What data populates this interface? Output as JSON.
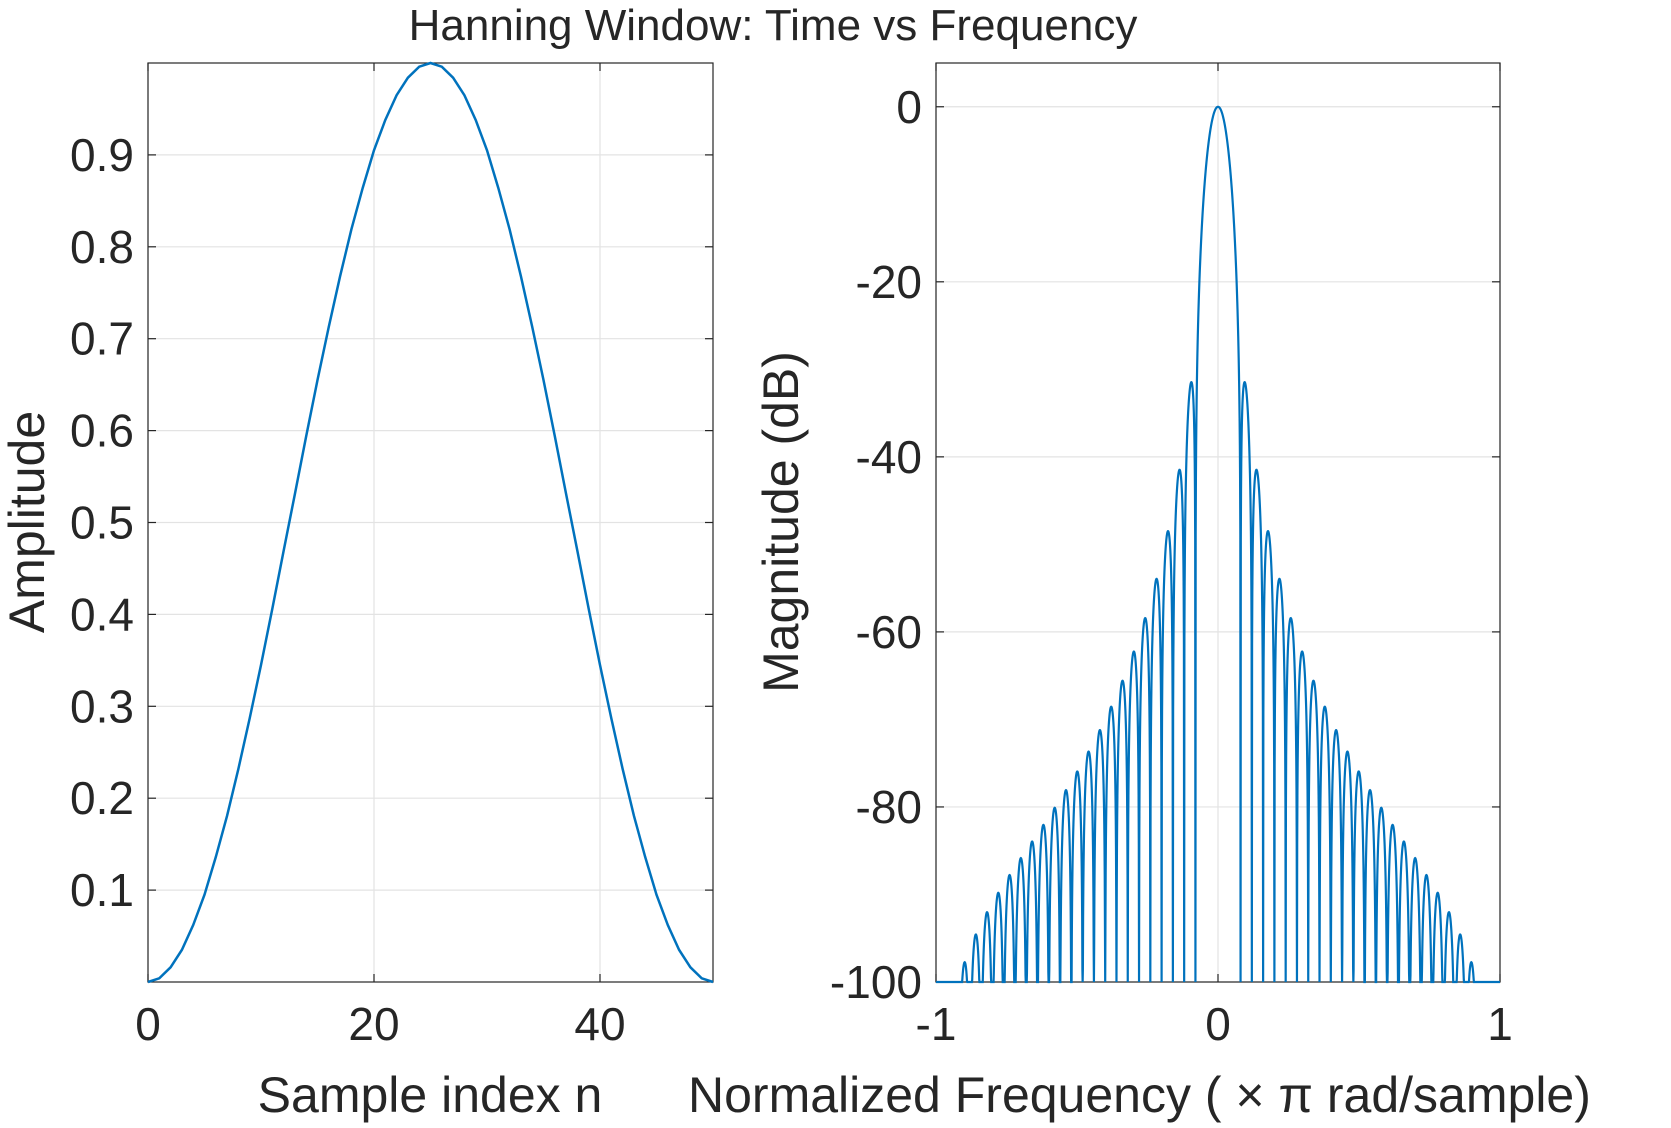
{
  "figure": {
    "title": "Hanning Window: Time vs Frequency"
  },
  "chart_data": [
    {
      "type": "line",
      "title": "Hanning Window: Time vs Frequency",
      "xlabel": "Sample index n",
      "ylabel": "Amplitude",
      "xlim": [
        0,
        50
      ],
      "ylim": [
        0,
        1
      ],
      "xticks": [
        0,
        20,
        40
      ],
      "xtick_labels": [
        "0",
        "20",
        "40"
      ],
      "yticks": [
        0.1,
        0.2,
        0.3,
        0.4,
        0.5,
        0.6,
        0.7,
        0.8,
        0.9
      ],
      "ytick_labels": [
        "0.1",
        "0.2",
        "0.3",
        "0.4",
        "0.5",
        "0.6",
        "0.7",
        "0.8",
        "0.9"
      ],
      "grid": true,
      "line_color": "#0072BD",
      "series": [
        {
          "x": [
            0,
            1,
            2,
            3,
            4,
            5,
            6,
            7,
            8,
            9,
            10,
            11,
            12,
            13,
            14,
            15,
            16,
            17,
            18,
            19,
            20,
            21,
            22,
            23,
            24,
            25,
            26,
            27,
            28,
            29,
            30,
            31,
            32,
            33,
            34,
            35,
            36,
            37,
            38,
            39,
            40,
            41,
            42,
            43,
            44,
            45,
            46,
            47,
            48,
            49,
            50
          ],
          "values": [
            0,
            0.004,
            0.016,
            0.035,
            0.062,
            0.095,
            0.136,
            0.181,
            0.232,
            0.287,
            0.345,
            0.406,
            0.469,
            0.531,
            0.594,
            0.655,
            0.713,
            0.768,
            0.819,
            0.864,
            0.905,
            0.938,
            0.965,
            0.984,
            0.996,
            1,
            0.996,
            0.984,
            0.965,
            0.938,
            0.905,
            0.864,
            0.819,
            0.768,
            0.713,
            0.655,
            0.594,
            0.531,
            0.469,
            0.406,
            0.345,
            0.287,
            0.232,
            0.181,
            0.136,
            0.095,
            0.062,
            0.035,
            0.016,
            0.004,
            0
          ]
        }
      ]
    },
    {
      "type": "line",
      "xlabel": "Normalized  Frequency  ( × π  rad/sample)",
      "ylabel": "Magnitude (dB)",
      "xlim": [
        -1,
        1
      ],
      "ylim": [
        -100,
        5
      ],
      "xticks": [
        -1,
        0,
        1
      ],
      "xtick_labels": [
        "-1",
        "0",
        "1"
      ],
      "yticks": [
        0,
        -20,
        -40,
        -60,
        -80,
        -100
      ],
      "ytick_labels": [
        "0",
        "-20",
        "-40",
        "-60",
        "-80",
        "-100"
      ],
      "grid": true,
      "line_color": "#0072BD",
      "window_length": 51,
      "min_db": -100,
      "samples": 2401
    }
  ]
}
